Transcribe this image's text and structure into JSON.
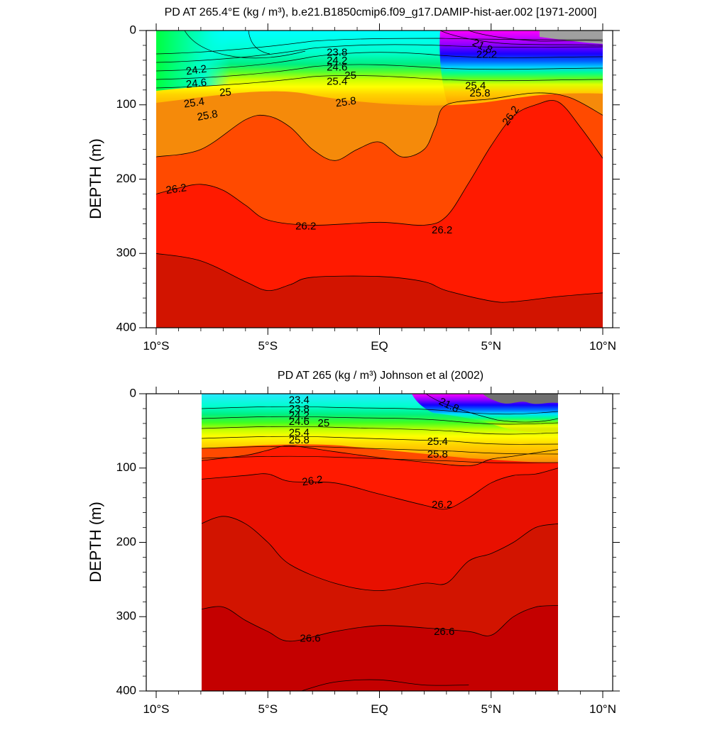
{
  "chart_data": [
    {
      "type": "contour",
      "title": "PD AT 265.4°E (kg / m³), b.e21.B1850cmip6.f09_g17.DAMIP-hist-aer.002 [1971-2000]",
      "xlabel": "",
      "ylabel": "DEPTH (m)",
      "xlim": [
        -10,
        10
      ],
      "ylim": [
        400,
        0
      ],
      "xticks": [
        {
          "value": -10,
          "label": "10°S"
        },
        {
          "value": -5,
          "label": "5°S"
        },
        {
          "value": 0,
          "label": "EQ"
        },
        {
          "value": 5,
          "label": "5°N"
        },
        {
          "value": 10,
          "label": "10°N"
        }
      ],
      "yticks": [
        0,
        100,
        200,
        300,
        400
      ],
      "data_extent_lat": [
        -10,
        10
      ],
      "levels": [
        {
          "level": 26.2,
          "depth": [
            [
              -10,
              170
            ],
            [
              -8,
              160
            ],
            [
              -6,
              120
            ],
            [
              -5,
              115
            ],
            [
              -4,
              130
            ],
            [
              -3,
              160
            ],
            [
              -2,
              175
            ],
            [
              -1,
              160
            ],
            [
              0,
              150
            ],
            [
              1,
              170
            ],
            [
              2,
              160
            ],
            [
              2.5,
              130
            ],
            [
              3,
              100
            ],
            [
              5,
              92
            ],
            [
              7,
              84
            ],
            [
              8.5,
              90
            ],
            [
              10,
              114
            ]
          ]
        },
        {
          "level": 26.4,
          "depth": [
            [
              -10,
              220
            ],
            [
              -9,
              212
            ],
            [
              -8,
              207
            ],
            [
              -7,
              215
            ],
            [
              -6,
              235
            ],
            [
              -5,
              255
            ],
            [
              -3,
              262
            ],
            [
              0,
              258
            ],
            [
              2,
              262
            ],
            [
              3,
              250
            ],
            [
              4,
              205
            ],
            [
              5,
              155
            ],
            [
              6,
              115
            ],
            [
              7,
              100
            ],
            [
              8,
              96
            ],
            [
              9,
              130
            ],
            [
              10,
              172
            ]
          ]
        },
        {
          "level": 26.6,
          "depth": [
            [
              -10,
              300
            ],
            [
              -8,
              310
            ],
            [
              -6,
              338
            ],
            [
              -5,
              350
            ],
            [
              -4,
              342
            ],
            [
              -3,
              332
            ],
            [
              0,
              331
            ],
            [
              2,
              338
            ],
            [
              3,
              350
            ],
            [
              5,
              364
            ],
            [
              6,
              365
            ],
            [
              8,
              358
            ],
            [
              10,
              353
            ]
          ]
        }
      ],
      "contour_labels": [
        "21.8",
        "22.2",
        "23.8",
        "24.2",
        "24.6",
        "25",
        "25.4",
        "25.8",
        "26.2"
      ]
    },
    {
      "type": "contour",
      "title": "PD AT 265 (kg / m³) Johnson et al (2002)",
      "xlabel": "",
      "ylabel": "DEPTH (m)",
      "xlim": [
        -10,
        10
      ],
      "ylim": [
        400,
        0
      ],
      "xticks": [
        {
          "value": -10,
          "label": "10°S"
        },
        {
          "value": -5,
          "label": "5°S"
        },
        {
          "value": 0,
          "label": "EQ"
        },
        {
          "value": 5,
          "label": "5°N"
        },
        {
          "value": 10,
          "label": "10°N"
        }
      ],
      "yticks": [
        0,
        100,
        200,
        300,
        400
      ],
      "data_extent_lat": [
        -8,
        8
      ],
      "levels": [
        {
          "level": 26.0,
          "depth": [
            [
              -8,
              90
            ],
            [
              -6,
              83
            ],
            [
              -5,
              76
            ],
            [
              -4,
              70
            ],
            [
              -2,
              78
            ],
            [
              0,
              86
            ],
            [
              2,
              92
            ],
            [
              4,
              97
            ],
            [
              5,
              88
            ],
            [
              6,
              84
            ],
            [
              8,
              75
            ]
          ]
        },
        {
          "level": 26.2,
          "depth": [
            [
              -8,
              115
            ],
            [
              -6,
              110
            ],
            [
              -5,
              108
            ],
            [
              -4,
              118
            ],
            [
              -2,
              120
            ],
            [
              0,
              135
            ],
            [
              2,
              150
            ],
            [
              3,
              155
            ],
            [
              4,
              140
            ],
            [
              5,
              120
            ],
            [
              6,
              110
            ],
            [
              7,
              108
            ],
            [
              8,
              100
            ]
          ]
        },
        {
          "level": 26.4,
          "depth": [
            [
              -8,
              175
            ],
            [
              -7,
              165
            ],
            [
              -6,
              175
            ],
            [
              -5,
              200
            ],
            [
              -4,
              230
            ],
            [
              -2,
              255
            ],
            [
              0,
              265
            ],
            [
              2,
              255
            ],
            [
              3,
              255
            ],
            [
              4,
              225
            ],
            [
              5,
              215
            ],
            [
              6,
              200
            ],
            [
              7,
              180
            ],
            [
              8,
              175
            ]
          ]
        },
        {
          "level": 26.6,
          "depth": [
            [
              -8,
              290
            ],
            [
              -7,
              287
            ],
            [
              -6,
              305
            ],
            [
              -5,
              320
            ],
            [
              -4,
              333
            ],
            [
              -2,
              320
            ],
            [
              0,
              312
            ],
            [
              2,
              315
            ],
            [
              4,
              320
            ],
            [
              5,
              325
            ],
            [
              6,
              300
            ],
            [
              7,
              287
            ],
            [
              8,
              285
            ]
          ]
        },
        {
          "level": 26.8,
          "depth": [
            [
              -3.5,
              400
            ],
            [
              -2,
              388
            ],
            [
              0,
              385
            ],
            [
              2,
              392
            ],
            [
              4,
              392
            ]
          ]
        }
      ],
      "contour_labels": [
        "21.8",
        "23.4",
        "23.8",
        "24.2",
        "24.6",
        "25",
        "25.4",
        "25.8",
        "26.2",
        "26.6"
      ]
    }
  ],
  "panels": [
    {
      "labels": [
        {
          "text": "21.8",
          "lat": 4.6,
          "depth": 22,
          "rot": 25
        },
        {
          "text": "22.2",
          "lat": 4.8,
          "depth": 33,
          "rot": 0
        },
        {
          "text": "23.8",
          "lat": -1.9,
          "depth": 30,
          "rot": 0
        },
        {
          "text": "24.2",
          "lat": -1.9,
          "depth": 41,
          "rot": 0
        },
        {
          "text": "24.6",
          "lat": -1.9,
          "depth": 50,
          "rot": 0
        },
        {
          "text": "25",
          "lat": -1.3,
          "depth": 61,
          "rot": 0
        },
        {
          "text": "25.4",
          "lat": -1.9,
          "depth": 69,
          "rot": 0
        },
        {
          "text": "25.8",
          "lat": -1.5,
          "depth": 97,
          "rot": -8
        },
        {
          "text": "24.2",
          "lat": -8.2,
          "depth": 54,
          "rot": -8
        },
        {
          "text": "24.6",
          "lat": -8.2,
          "depth": 72,
          "rot": -6
        },
        {
          "text": "25",
          "lat": -6.9,
          "depth": 84,
          "rot": -4
        },
        {
          "text": "25.4",
          "lat": -8.3,
          "depth": 98,
          "rot": -8
        },
        {
          "text": "25.8",
          "lat": -7.7,
          "depth": 115,
          "rot": -10
        },
        {
          "text": "25.8",
          "lat": 4.5,
          "depth": 85,
          "rot": 0
        },
        {
          "text": "25.4",
          "lat": 4.3,
          "depth": 75,
          "rot": 0
        },
        {
          "text": "26.2",
          "lat": 5.9,
          "depth": 115,
          "rot": -55
        },
        {
          "text": "26.2",
          "lat": -9.1,
          "depth": 214,
          "rot": -8
        },
        {
          "text": "26.2",
          "lat": -3.3,
          "depth": 264,
          "rot": 0
        },
        {
          "text": "26.2",
          "lat": 2.8,
          "depth": 269,
          "rot": 0
        }
      ]
    },
    {
      "labels": [
        {
          "text": "23.4",
          "lat": -3.6,
          "depth": 9,
          "rot": 0
        },
        {
          "text": "23.8",
          "lat": -3.6,
          "depth": 21,
          "rot": 0
        },
        {
          "text": "24.2",
          "lat": -3.6,
          "depth": 30,
          "rot": 0
        },
        {
          "text": "24.6",
          "lat": -3.6,
          "depth": 38,
          "rot": 0
        },
        {
          "text": "25",
          "lat": -2.5,
          "depth": 40,
          "rot": 0
        },
        {
          "text": "25.4",
          "lat": -3.6,
          "depth": 53,
          "rot": 0
        },
        {
          "text": "25.8",
          "lat": -3.6,
          "depth": 63,
          "rot": 0
        },
        {
          "text": "21.8",
          "lat": 3.1,
          "depth": 16,
          "rot": 25
        },
        {
          "text": "25.4",
          "lat": 2.6,
          "depth": 65,
          "rot": 0
        },
        {
          "text": "25.8",
          "lat": 2.6,
          "depth": 82,
          "rot": 0
        },
        {
          "text": "26.2",
          "lat": -3.0,
          "depth": 118,
          "rot": -8
        },
        {
          "text": "26.2",
          "lat": 2.8,
          "depth": 150,
          "rot": 0
        },
        {
          "text": "26.6",
          "lat": -3.1,
          "depth": 330,
          "rot": 0
        },
        {
          "text": "26.6",
          "lat": 2.9,
          "depth": 321,
          "rot": 0
        }
      ]
    }
  ],
  "colors": {
    "deep_red": "#d21400",
    "red": "#ff1a00",
    "orange_red": "#ff4a00",
    "orange": "#f58a0a",
    "gray": "#a0a0a0",
    "magenta": "#ff00ff",
    "purple": "#8a00ff",
    "blue": "#0000ff",
    "cyan": "#00ffff",
    "green": "#00e040",
    "yellow": "#ffff00"
  }
}
